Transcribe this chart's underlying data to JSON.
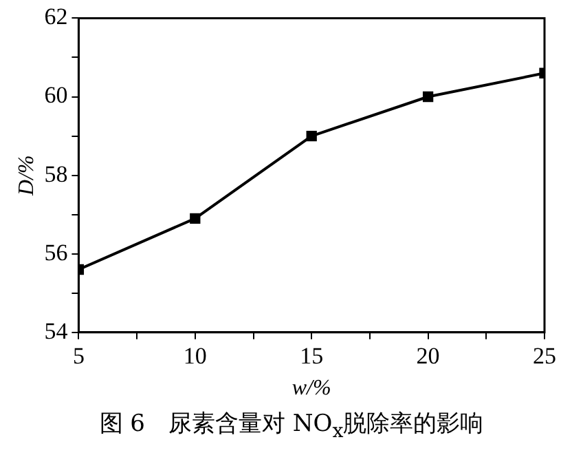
{
  "chart_data": {
    "type": "line",
    "xlabel": "w/%",
    "ylabel": "D/%",
    "annotations": [
      "图 6　尿素含量对 NO$_{x}$脱除率的影响"
    ],
    "x": [
      5,
      10,
      15,
      20,
      25
    ],
    "series": [
      {
        "color": "#000000",
        "values": [
          55.6,
          56.9,
          59.0,
          60.0,
          60.6
        ]
      }
    ],
    "xlim": [
      5,
      25
    ],
    "xticks": [
      5,
      {
        "value": 7.5,
        "label": null
      },
      10,
      {
        "value": 12.5,
        "label": null
      },
      15,
      {
        "value": 17.5,
        "label": null
      },
      20,
      {
        "value": 22.5,
        "label": null
      },
      25
    ],
    "ylim": [
      54,
      62
    ],
    "yticks": [
      54,
      {
        "value": 55,
        "label": null
      },
      56,
      {
        "value": 57,
        "label": null
      },
      58,
      {
        "value": 59,
        "label": null
      },
      60,
      {
        "value": 61,
        "label": null
      },
      62
    ],
    "grid": false,
    "legend": false,
    "marker": "square",
    "line_style": "solid"
  }
}
